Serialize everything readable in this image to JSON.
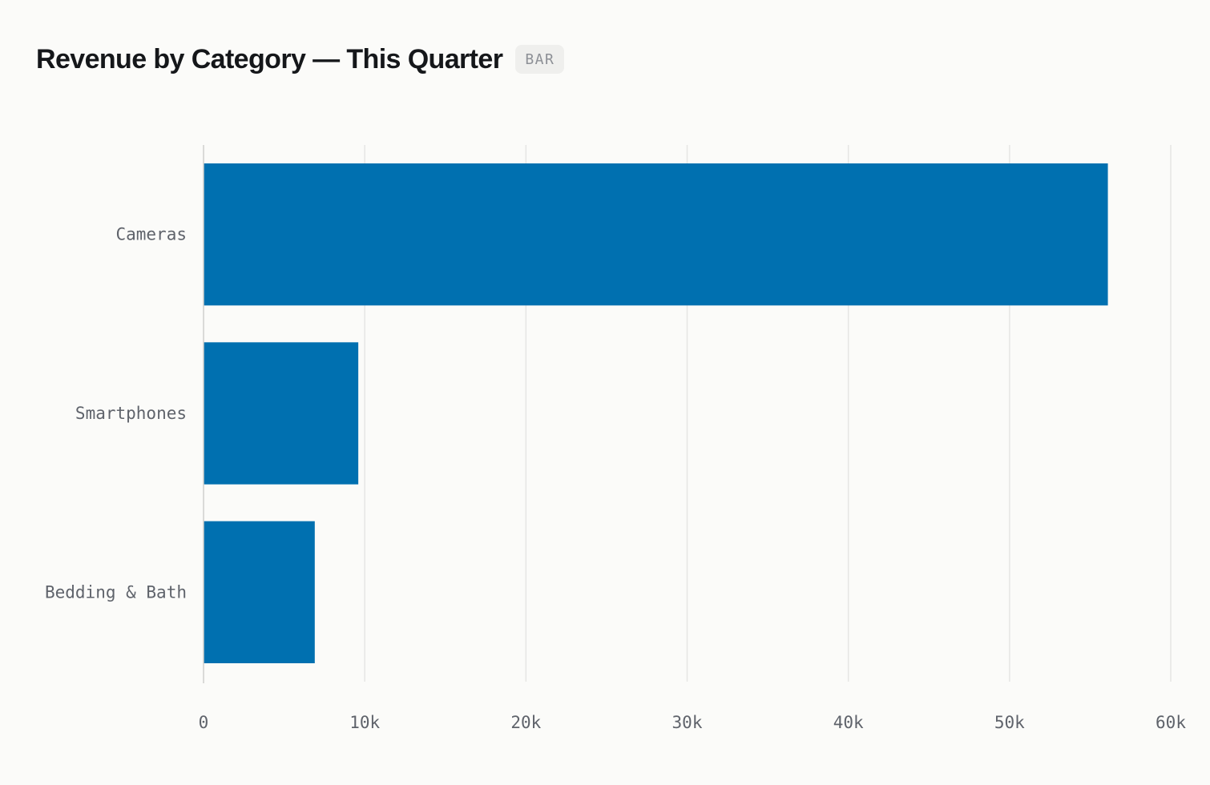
{
  "header": {
    "title": "Revenue by Category — This Quarter",
    "badge": "BAR"
  },
  "colors": {
    "bar": "#0070b0",
    "grid": "#e6e6e4",
    "axis": "#cfd0cd",
    "text": "#5f636b"
  },
  "chart_data": {
    "type": "bar",
    "orientation": "horizontal",
    "categories": [
      "Cameras",
      "Smartphones",
      "Bedding & Bath"
    ],
    "values": [
      56100,
      9600,
      6900
    ],
    "xlim": [
      0,
      60000
    ],
    "xticks": [
      0,
      10000,
      20000,
      30000,
      40000,
      50000,
      60000
    ],
    "xtick_labels": [
      "0",
      "10k",
      "20k",
      "30k",
      "40k",
      "50k",
      "60k"
    ],
    "grid": true
  }
}
